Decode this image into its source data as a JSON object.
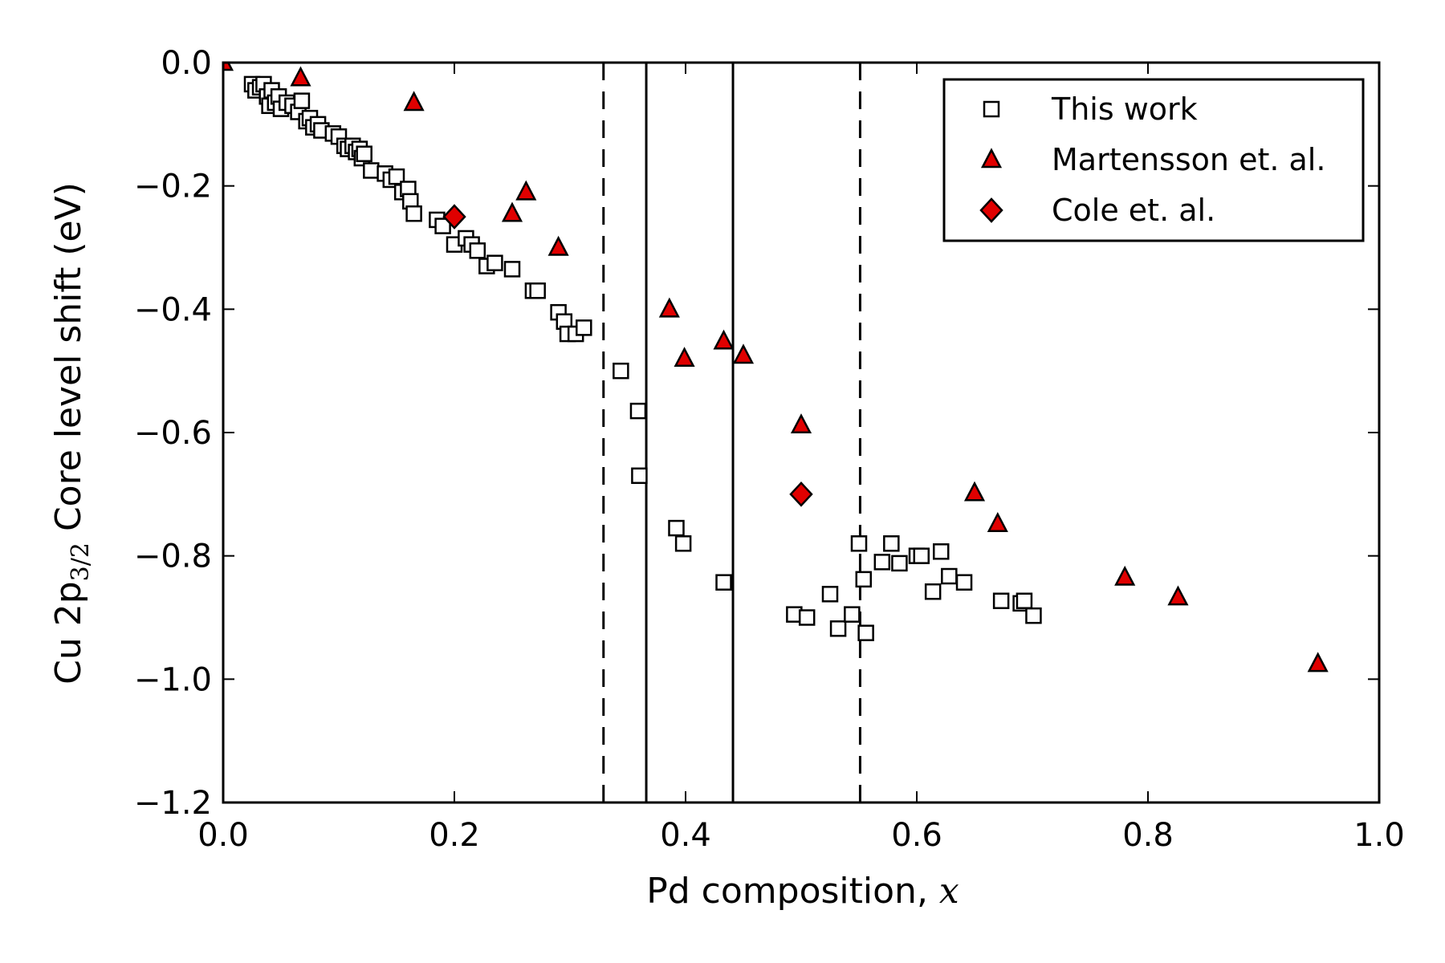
{
  "chart_data": {
    "type": "scatter",
    "xlabel": "Pd composition, ",
    "xlabel_var": "x",
    "ylabel": "Cu 2p",
    "ylabel_sub": "3/2",
    "ylabel_rest": " Core level shift (eV)",
    "xlim": [
      0.0,
      1.0
    ],
    "ylim": [
      -1.2,
      0.0
    ],
    "xticks": [
      0.0,
      0.2,
      0.4,
      0.6,
      0.8,
      1.0
    ],
    "yticks": [
      0.0,
      -0.2,
      -0.4,
      -0.6,
      -0.8,
      -1.0,
      -1.2
    ],
    "xtick_labels": [
      "0.0",
      "0.2",
      "0.4",
      "0.6",
      "0.8",
      "1.0"
    ],
    "ytick_labels": [
      "0.0",
      "−0.2",
      "−0.4",
      "−0.6",
      "−0.8",
      "−1.0",
      "−1.2"
    ],
    "grid": false,
    "legend_position": "top-right",
    "vertical_lines": [
      {
        "x": 0.329,
        "style": "dashed"
      },
      {
        "x": 0.366,
        "style": "solid"
      },
      {
        "x": 0.441,
        "style": "solid"
      },
      {
        "x": 0.551,
        "style": "dashed"
      }
    ],
    "series": [
      {
        "name": "This work",
        "marker": "square",
        "color": "#ffffff",
        "edgecolor": "#000000",
        "points": [
          [
            0.025,
            -0.035
          ],
          [
            0.028,
            -0.045
          ],
          [
            0.032,
            -0.04
          ],
          [
            0.035,
            -0.035
          ],
          [
            0.038,
            -0.055
          ],
          [
            0.04,
            -0.07
          ],
          [
            0.042,
            -0.045
          ],
          [
            0.045,
            -0.065
          ],
          [
            0.048,
            -0.055
          ],
          [
            0.05,
            -0.075
          ],
          [
            0.055,
            -0.065
          ],
          [
            0.06,
            -0.07
          ],
          [
            0.065,
            -0.08
          ],
          [
            0.068,
            -0.062
          ],
          [
            0.072,
            -0.095
          ],
          [
            0.075,
            -0.09
          ],
          [
            0.078,
            -0.105
          ],
          [
            0.082,
            -0.1
          ],
          [
            0.085,
            -0.11
          ],
          [
            0.095,
            -0.115
          ],
          [
            0.1,
            -0.12
          ],
          [
            0.105,
            -0.135
          ],
          [
            0.108,
            -0.14
          ],
          [
            0.112,
            -0.135
          ],
          [
            0.115,
            -0.145
          ],
          [
            0.118,
            -0.14
          ],
          [
            0.12,
            -0.155
          ],
          [
            0.122,
            -0.148
          ],
          [
            0.128,
            -0.175
          ],
          [
            0.14,
            -0.18
          ],
          [
            0.145,
            -0.19
          ],
          [
            0.15,
            -0.185
          ],
          [
            0.155,
            -0.21
          ],
          [
            0.16,
            -0.205
          ],
          [
            0.162,
            -0.225
          ],
          [
            0.165,
            -0.245
          ],
          [
            0.185,
            -0.255
          ],
          [
            0.19,
            -0.265
          ],
          [
            0.2,
            -0.295
          ],
          [
            0.21,
            -0.285
          ],
          [
            0.215,
            -0.295
          ],
          [
            0.22,
            -0.305
          ],
          [
            0.228,
            -0.33
          ],
          [
            0.235,
            -0.325
          ],
          [
            0.25,
            -0.335
          ],
          [
            0.268,
            -0.37
          ],
          [
            0.272,
            -0.37
          ],
          [
            0.29,
            -0.405
          ],
          [
            0.295,
            -0.42
          ],
          [
            0.298,
            -0.44
          ],
          [
            0.305,
            -0.44
          ],
          [
            0.312,
            -0.43
          ],
          [
            0.344,
            -0.5
          ],
          [
            0.359,
            -0.565
          ],
          [
            0.36,
            -0.67
          ],
          [
            0.392,
            -0.755
          ],
          [
            0.398,
            -0.78
          ],
          [
            0.433,
            -0.843
          ],
          [
            0.494,
            -0.895
          ],
          [
            0.505,
            -0.9
          ],
          [
            0.525,
            -0.862
          ],
          [
            0.532,
            -0.918
          ],
          [
            0.544,
            -0.895
          ],
          [
            0.55,
            -0.78
          ],
          [
            0.554,
            -0.838
          ],
          [
            0.556,
            -0.925
          ],
          [
            0.57,
            -0.81
          ],
          [
            0.578,
            -0.78
          ],
          [
            0.585,
            -0.812
          ],
          [
            0.6,
            -0.8
          ],
          [
            0.604,
            -0.8
          ],
          [
            0.614,
            -0.858
          ],
          [
            0.621,
            -0.793
          ],
          [
            0.628,
            -0.833
          ],
          [
            0.641,
            -0.843
          ],
          [
            0.673,
            -0.873
          ],
          [
            0.69,
            -0.877
          ],
          [
            0.693,
            -0.873
          ],
          [
            0.701,
            -0.897
          ]
        ]
      },
      {
        "name": "Martensson et. al.",
        "marker": "triangle",
        "color": "#e00000",
        "edgecolor": "#000000",
        "points": [
          [
            0.0,
            0.0
          ],
          [
            0.067,
            -0.025
          ],
          [
            0.165,
            -0.065
          ],
          [
            0.25,
            -0.245
          ],
          [
            0.262,
            -0.21
          ],
          [
            0.29,
            -0.3
          ],
          [
            0.386,
            -0.4
          ],
          [
            0.399,
            -0.48
          ],
          [
            0.433,
            -0.452
          ],
          [
            0.45,
            -0.475
          ],
          [
            0.5,
            -0.588
          ],
          [
            0.65,
            -0.698
          ],
          [
            0.67,
            -0.748
          ],
          [
            0.78,
            -0.835
          ],
          [
            0.826,
            -0.867
          ],
          [
            0.947,
            -0.975
          ]
        ]
      },
      {
        "name": "Cole et. al.",
        "marker": "diamond",
        "color": "#e00000",
        "edgecolor": "#000000",
        "points": [
          [
            0.2,
            -0.25
          ],
          [
            0.5,
            -0.7
          ]
        ]
      }
    ]
  }
}
